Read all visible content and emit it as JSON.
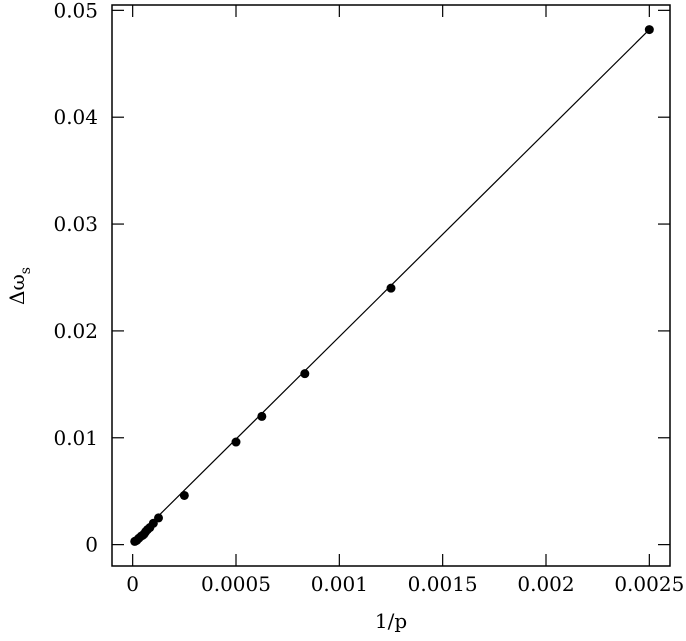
{
  "chart_data": {
    "type": "scatter",
    "xlabel": "1/p",
    "ylabel": "Δω",
    "ylabel_sub": "s",
    "xlim": [
      -0.0001,
      0.0026
    ],
    "ylim": [
      -0.002,
      0.0505
    ],
    "xticks": [
      0,
      0.0005,
      0.001,
      0.0015,
      0.002,
      0.0025
    ],
    "yticks": [
      0,
      0.01,
      0.02,
      0.03,
      0.04,
      0.05
    ],
    "series": [
      {
        "kind": "points",
        "color": "#000000",
        "x": [
          0.0025,
          0.00125,
          0.000833,
          0.000625,
          0.0005,
          0.00025,
          0.000125,
          0.0001,
          8.33e-05,
          7.14e-05,
          6.25e-05,
          5.56e-05,
          5e-05,
          4.17e-05,
          3e-05,
          2e-05,
          1e-05
        ],
        "values": [
          0.0482,
          0.024,
          0.016,
          0.012,
          0.0096,
          0.0046,
          0.0025,
          0.002,
          0.0016,
          0.0014,
          0.0012,
          0.001,
          0.0009,
          0.0008,
          0.0006,
          0.0004,
          0.0003
        ]
      },
      {
        "kind": "line",
        "color": "#000000",
        "x": [
          0,
          0.0025
        ],
        "values": [
          0.0003,
          0.0482
        ]
      }
    ]
  }
}
